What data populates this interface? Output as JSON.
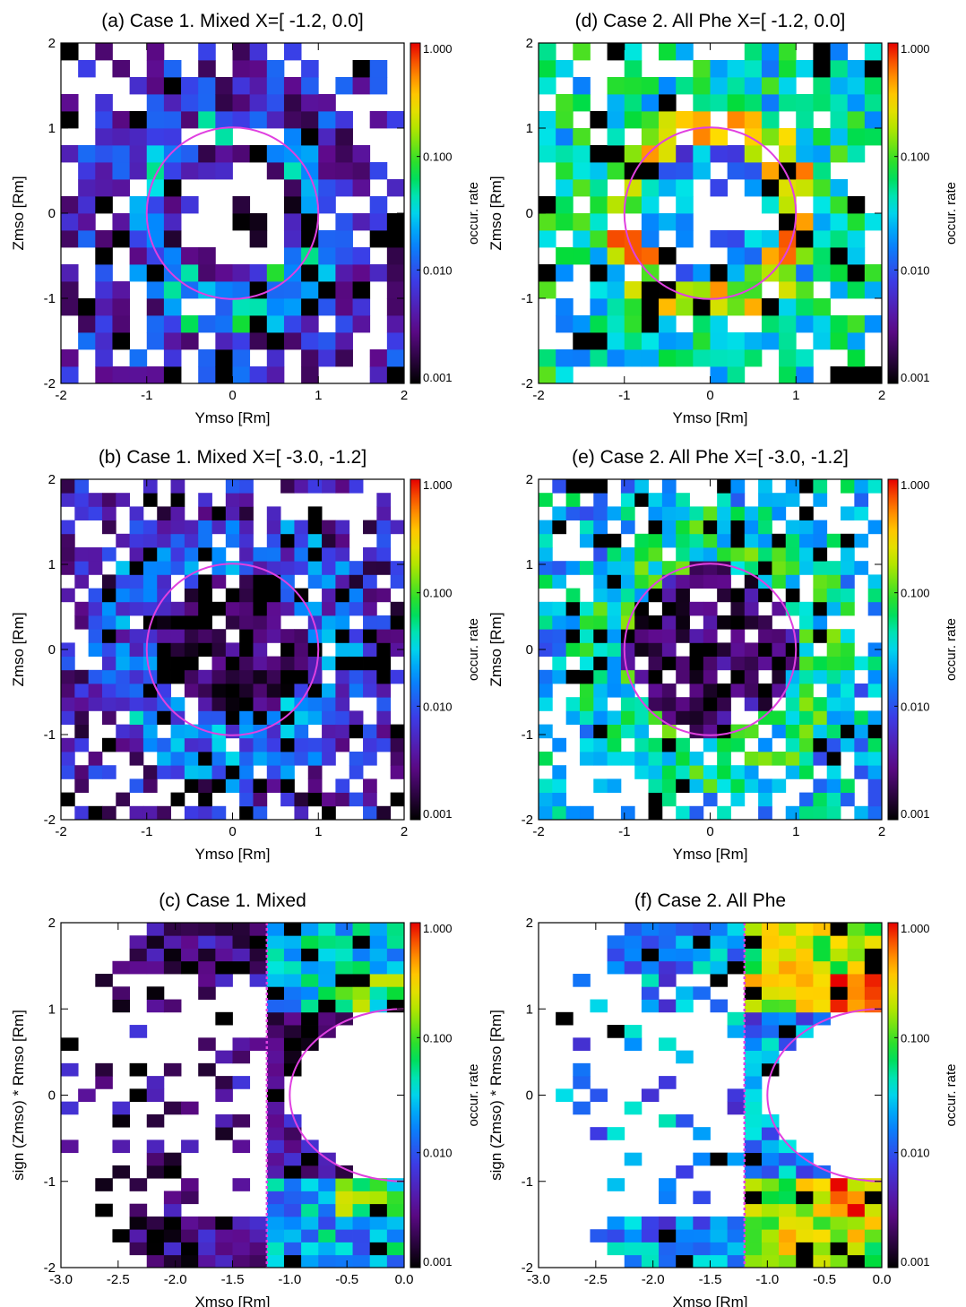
{
  "chart_data": [
    {
      "type": "heatmap",
      "title": "(a) Case 1. Mixed X=[ -1.2,  0.0]",
      "xlabel": "Ymso [Rm]",
      "ylabel": "Zmso [Rm]",
      "xlim": [
        -2,
        2
      ],
      "ylim": [
        -2,
        2
      ],
      "xticks": [
        "-2",
        "-1",
        "0",
        "1",
        "2"
      ],
      "yticks": [
        "-2",
        "-1",
        "0",
        "1",
        "2"
      ],
      "grid_bins": [
        20,
        20
      ],
      "circle": {
        "center": [
          0,
          0
        ],
        "radius": 1,
        "color": "#e040e0"
      },
      "colorbar": {
        "label": "occur. rate",
        "scale": "log",
        "range": [
          0.001,
          1.0
        ],
        "ticks": [
          "1.000",
          "0.100",
          "0.010",
          "0.001"
        ]
      },
      "pattern": {
        "peak_band": [
          0.8,
          1.2
        ],
        "peak_log": -1.7,
        "inner_log": -2.6,
        "outer_log": -2.3,
        "empty_core": 0.6,
        "peak_side": "bottom"
      }
    },
    {
      "type": "heatmap",
      "title": "(b) Case 1. Mixed X=[ -3.0, -1.2]",
      "xlabel": "Ymso [Rm]",
      "ylabel": "Zmso [Rm]",
      "xlim": [
        -2,
        2
      ],
      "ylim": [
        -2,
        2
      ],
      "xticks": [
        "-2",
        "-1",
        "0",
        "1",
        "2"
      ],
      "yticks": [
        "-2",
        "-1",
        "0",
        "1",
        "2"
      ],
      "grid_bins": [
        25,
        25
      ],
      "circle": {
        "center": [
          0,
          0
        ],
        "radius": 1,
        "color": "#e040e0"
      },
      "colorbar": {
        "label": "occur. rate",
        "scale": "log",
        "range": [
          0.001,
          1.0
        ],
        "ticks": [
          "1.000",
          "0.100",
          "0.010",
          "0.001"
        ]
      },
      "pattern": {
        "peak_band": [
          0.9,
          1.6
        ],
        "peak_log": -2.0,
        "inner_log": -2.8,
        "outer_log": -2.4,
        "empty_core": 0.0,
        "peak_side": "bottom"
      }
    },
    {
      "type": "heatmap",
      "title": "(c) Case 1. Mixed",
      "xlabel": "Xmso [Rm]",
      "ylabel": "sign (Zmso) * Rmso [Rm]",
      "xlim": [
        -3,
        0
      ],
      "ylim": [
        -2,
        2
      ],
      "xticks": [
        "-3.0",
        "-2.5",
        "-2.0",
        "-1.5",
        "-1.0",
        "-0.5",
        "0.0"
      ],
      "yticks": [
        "-2",
        "-1",
        "0",
        "1",
        "2"
      ],
      "grid_bins": [
        20,
        27
      ],
      "boundary_x": -1.2,
      "circle": {
        "center": [
          0,
          0
        ],
        "radius": 1,
        "color": "#e040e0"
      },
      "colorbar": {
        "label": "occur. rate",
        "scale": "log",
        "range": [
          0.001,
          1.0
        ],
        "ticks": [
          "1.000",
          "0.100",
          "0.010",
          "0.001"
        ]
      },
      "pattern": {
        "near_log": -1.6,
        "far_log": -2.6
      }
    },
    {
      "type": "heatmap",
      "title": "(d) Case 2. All Phe X=[ -1.2,  0.0]",
      "xlabel": "Ymso [Rm]",
      "ylabel": "Zmso [Rm]",
      "xlim": [
        -2,
        2
      ],
      "ylim": [
        -2,
        2
      ],
      "xticks": [
        "-2",
        "-1",
        "0",
        "1",
        "2"
      ],
      "yticks": [
        "-2",
        "-1",
        "0",
        "1",
        "2"
      ],
      "grid_bins": [
        20,
        20
      ],
      "circle": {
        "center": [
          0,
          0
        ],
        "radius": 1,
        "color": "#e040e0"
      },
      "colorbar": {
        "label": "occur. rate",
        "scale": "log",
        "range": [
          0.001,
          1.0
        ],
        "ticks": [
          "1.000",
          "0.100",
          "0.010",
          "0.001"
        ]
      },
      "pattern": {
        "peak_band": [
          0.8,
          1.3
        ],
        "peak_log": -0.6,
        "inner_log": -1.8,
        "outer_log": -1.4,
        "empty_core": 0.55,
        "peak_side": "ring"
      }
    },
    {
      "type": "heatmap",
      "title": "(e) Case 2. All Phe X=[ -3.0, -1.2]",
      "xlabel": "Ymso [Rm]",
      "ylabel": "Zmso [Rm]",
      "xlim": [
        -2,
        2
      ],
      "ylim": [
        -2,
        2
      ],
      "xticks": [
        "-2",
        "-1",
        "0",
        "1",
        "2"
      ],
      "yticks": [
        "-2",
        "-1",
        "0",
        "1",
        "2"
      ],
      "grid_bins": [
        25,
        25
      ],
      "circle": {
        "center": [
          0,
          0
        ],
        "radius": 1,
        "color": "#e040e0"
      },
      "colorbar": {
        "label": "occur. rate",
        "scale": "log",
        "range": [
          0.001,
          1.0
        ],
        "ticks": [
          "1.000",
          "0.100",
          "0.010",
          "0.001"
        ]
      },
      "pattern": {
        "peak_band": [
          1.0,
          1.7
        ],
        "peak_log": -1.3,
        "inner_log": -2.7,
        "outer_log": -1.6,
        "empty_core": 0.0,
        "peak_side": "ring"
      }
    },
    {
      "type": "heatmap",
      "title": "(f) Case 2. All Phe",
      "xlabel": "Xmso [Rm]",
      "ylabel": "sign (Zmso) * Rmso [Rm]",
      "xlim": [
        -3,
        0
      ],
      "ylim": [
        -2,
        2
      ],
      "xticks": [
        "-3.0",
        "-2.5",
        "-2.0",
        "-1.5",
        "-1.0",
        "-0.5",
        "0.0"
      ],
      "yticks": [
        "-2",
        "-1",
        "0",
        "1",
        "2"
      ],
      "grid_bins": [
        20,
        27
      ],
      "boundary_x": -1.2,
      "circle": {
        "center": [
          0,
          0
        ],
        "radius": 1,
        "color": "#e040e0"
      },
      "colorbar": {
        "label": "occur. rate",
        "scale": "log",
        "range": [
          0.001,
          1.0
        ],
        "ticks": [
          "1.000",
          "0.100",
          "0.010",
          "0.001"
        ]
      },
      "pattern": {
        "near_log": -0.8,
        "far_log": -1.8
      }
    }
  ]
}
